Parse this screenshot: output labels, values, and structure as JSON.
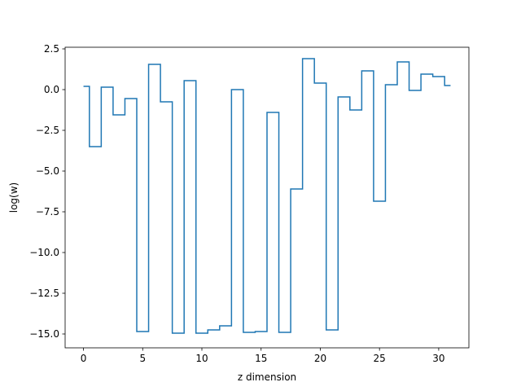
{
  "chart_data": {
    "type": "line",
    "drawstyle": "steps-mid",
    "title": "",
    "xlabel": "z dimension",
    "ylabel": "log(w)",
    "xlim": [
      -1.55,
      32.55
    ],
    "ylim": [
      -15.85,
      2.6
    ],
    "xticks": [
      0,
      5,
      10,
      15,
      20,
      25,
      30
    ],
    "xtick_labels": [
      "0",
      "5",
      "10",
      "15",
      "20",
      "25",
      "30"
    ],
    "yticks": [
      2.5,
      0.0,
      -2.5,
      -5.0,
      -7.5,
      -10.0,
      -12.5,
      -15.0
    ],
    "ytick_labels": [
      "2.5",
      "0.0",
      "−2.5",
      "−5.0",
      "−7.5",
      "−10.0",
      "−12.5",
      "−15.0"
    ],
    "grid": false,
    "legend": false,
    "series": [
      {
        "color": "#1f77b4",
        "x": [
          0,
          1,
          2,
          3,
          4,
          5,
          6,
          7,
          8,
          9,
          10,
          11,
          12,
          13,
          14,
          15,
          16,
          17,
          18,
          19,
          20,
          21,
          22,
          23,
          24,
          25,
          26,
          27,
          28,
          29,
          30,
          31
        ],
        "values": [
          0.2,
          -3.5,
          0.15,
          -1.55,
          -0.55,
          -14.85,
          1.55,
          -0.75,
          -14.95,
          0.55,
          -14.95,
          -14.75,
          -14.5,
          0.0,
          -14.9,
          -14.85,
          -1.4,
          -14.9,
          -6.1,
          1.9,
          0.4,
          -14.75,
          -0.45,
          -1.25,
          1.15,
          -6.85,
          0.3,
          1.7,
          -0.05,
          0.95,
          0.8,
          0.25
        ]
      }
    ]
  }
}
